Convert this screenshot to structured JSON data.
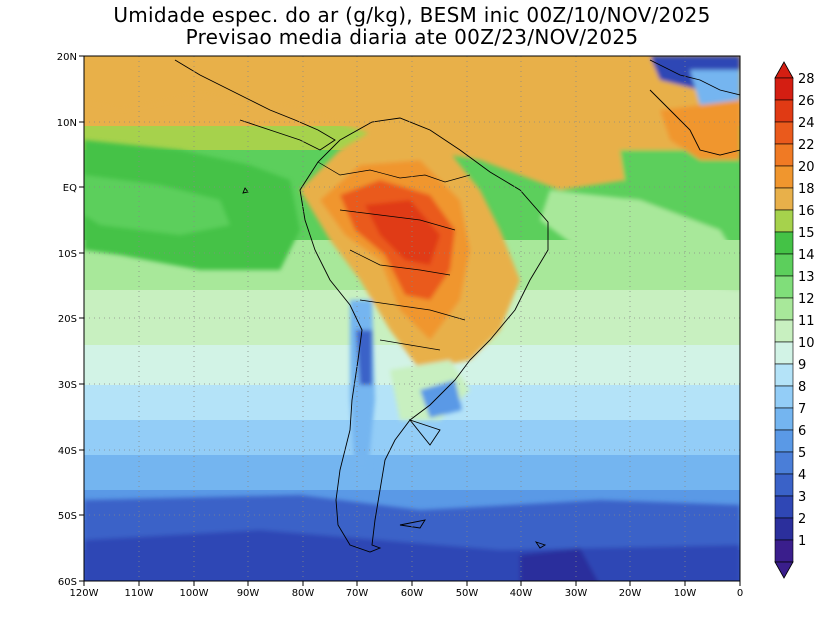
{
  "title": {
    "line1": "Umidade espec. do ar (g/kg), BESM inic 00Z/10/NOV/2025",
    "line2": "Previsao media diaria ate 00Z/23/NOV/2025"
  },
  "map": {
    "lon_range": [
      -120,
      0
    ],
    "lat_range": [
      -60,
      20
    ],
    "lon_ticks": [
      "120W",
      "110W",
      "100W",
      "90W",
      "80W",
      "70W",
      "60W",
      "50W",
      "40W",
      "30W",
      "20W",
      "10W",
      "0"
    ],
    "lat_ticks": [
      "20N",
      "10N",
      "EQ",
      "10S",
      "20S",
      "30S",
      "40S",
      "50S",
      "60S"
    ],
    "variable": "specific humidity",
    "units": "g/kg"
  },
  "colorbar": {
    "levels": [
      "1",
      "2",
      "3",
      "4",
      "5",
      "6",
      "7",
      "8",
      "9",
      "10",
      "11",
      "12",
      "13",
      "14",
      "15",
      "16",
      "18",
      "20",
      "22",
      "24",
      "26",
      "28"
    ],
    "colors": [
      "#3a1e8c",
      "#2b2f9c",
      "#2f47b5",
      "#3a62c8",
      "#4a7ed8",
      "#5a99e6",
      "#74b5f0",
      "#93cdf7",
      "#b4e3f8",
      "#d2f3e6",
      "#c8f0c0",
      "#a8e89a",
      "#80de7a",
      "#5ccf5c",
      "#44c246",
      "#a6d24c",
      "#e8b04a",
      "#f0962e",
      "#f07a24",
      "#ea5a1c",
      "#e03a14",
      "#d41e12"
    ]
  }
}
